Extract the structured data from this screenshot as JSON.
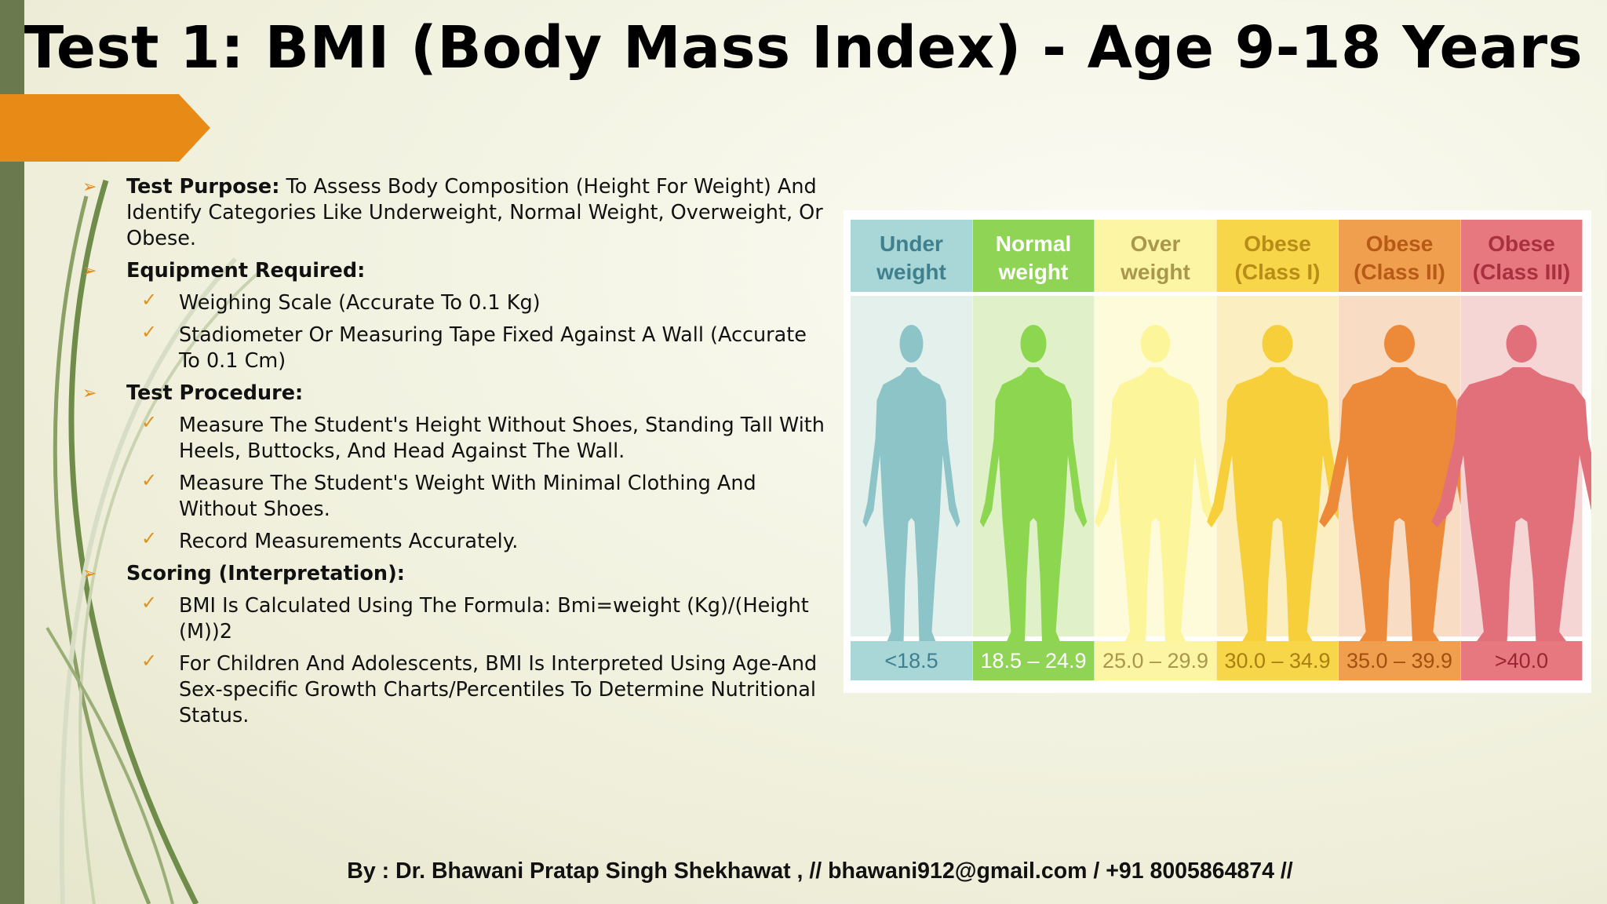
{
  "header": {
    "title": "Test 1: BMI (Body Mass Index) - Age 9-18 Years"
  },
  "sections": [
    {
      "label": "Test Purpose:",
      "text": "To Assess Body Composition (Height For Weight) And Identify Categories Like Underweight, Normal Weight, Overweight, Or Obese.",
      "items": []
    },
    {
      "label": "Equipment Required:",
      "items": [
        "Weighing Scale (Accurate To 0.1 Kg)",
        "Stadiometer Or Measuring Tape Fixed Against A Wall (Accurate To 0.1 Cm)"
      ]
    },
    {
      "label": "Test Procedure:",
      "items": [
        "Measure The Student's Height Without Shoes, Standing Tall With Heels, Buttocks, And Head Against The Wall.",
        "Measure The Student's Weight With Minimal Clothing And Without Shoes.",
        "Record Measurements Accurately."
      ]
    },
    {
      "label": "Scoring (Interpretation):",
      "items": [
        "BMI Is Calculated Using The Formula: Bmi=weight (Kg)/(Height (M))2",
        "For Children And Adolescents, BMI Is Interpreted Using Age-And Sex-specific Growth Charts/Percentiles To Determine Nutritional Status."
      ]
    }
  ],
  "bmi_chart": {
    "columns": [
      {
        "line1": "Under",
        "line2": "weight",
        "range": "<18.5"
      },
      {
        "line1": "Normal",
        "line2": "weight",
        "range": "18.5 – 24.9"
      },
      {
        "line1": "Over",
        "line2": "weight",
        "range": "25.0 – 29.9"
      },
      {
        "line1": "Obese",
        "line2": "(Class I)",
        "range": "30.0 – 34.9"
      },
      {
        "line1": "Obese",
        "line2": "(Class II)",
        "range": "35.0 – 39.9"
      },
      {
        "line1": "Obese",
        "line2": "(Class III)",
        "range": ">40.0"
      }
    ]
  },
  "footer": {
    "text": "By : Dr. Bhawani Pratap Singh Shekhawat , // bhawani912@gmail.com / +91 8005864874 //"
  }
}
